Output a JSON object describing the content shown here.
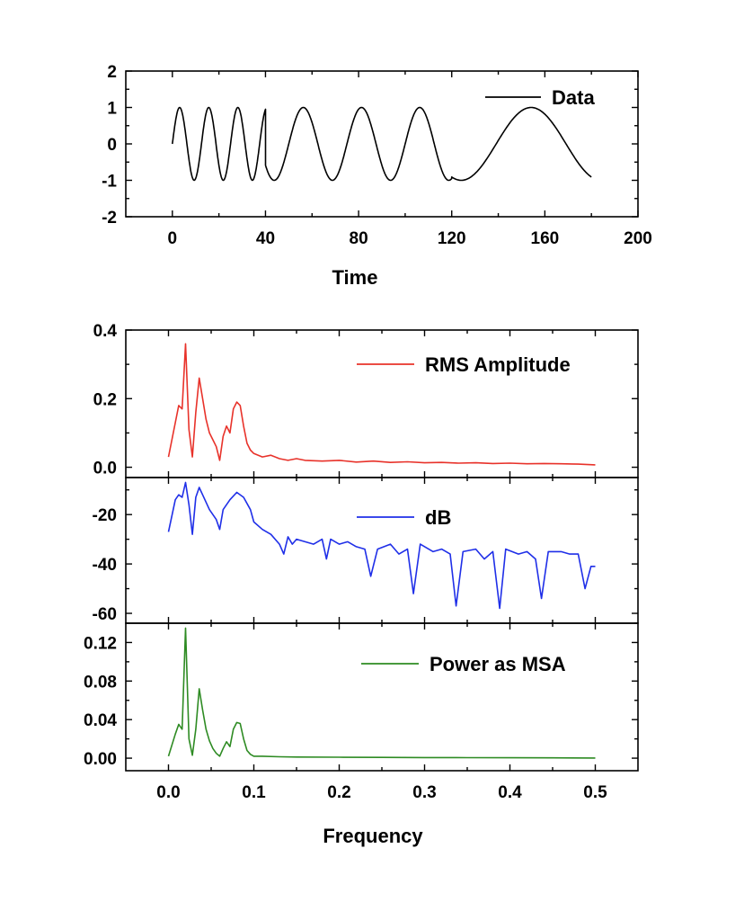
{
  "chart_data": [
    {
      "type": "line",
      "panel": "time",
      "xlabel": "Time",
      "ylabel": "",
      "xlim": [
        -20,
        200
      ],
      "ylim": [
        -2,
        2
      ],
      "xticks": [
        0,
        40,
        80,
        120,
        160,
        200
      ],
      "yticks": [
        -2,
        -1,
        0,
        1,
        2
      ],
      "xtick_labels": [
        "0",
        "40",
        "80",
        "120",
        "160",
        "200"
      ],
      "ytick_labels": [
        "-2",
        "-1",
        "0",
        "1",
        "2"
      ],
      "legend_position": "top-right",
      "series": [
        {
          "name": "Data",
          "color": "#000000",
          "segments": [
            {
              "t_start": 0,
              "t_end": 40,
              "period": 12.5
            },
            {
              "t_start": 40,
              "t_end": 80,
              "period": 25
            },
            {
              "t_start": 80,
              "t_end": 120,
              "period": 25
            },
            {
              "t_start": 120,
              "t_end": 180,
              "period": 60,
              "phase": -2.0
            }
          ]
        }
      ]
    },
    {
      "type": "line",
      "panel": "rms",
      "xlabel": "",
      "ylabel": "",
      "xlim": [
        -0.05,
        0.55
      ],
      "ylim": [
        -0.03,
        0.4
      ],
      "yticks": [
        0.0,
        0.2,
        0.4
      ],
      "ytick_labels": [
        "0.0",
        "0.2",
        "0.4"
      ],
      "legend_position": "top-right",
      "series": [
        {
          "name": "RMS Amplitude",
          "color": "#e8322a",
          "x": [
            0.0,
            0.008,
            0.012,
            0.016,
            0.02,
            0.024,
            0.028,
            0.032,
            0.036,
            0.04,
            0.044,
            0.048,
            0.052,
            0.056,
            0.06,
            0.064,
            0.068,
            0.072,
            0.076,
            0.08,
            0.084,
            0.088,
            0.092,
            0.096,
            0.1,
            0.11,
            0.12,
            0.13,
            0.14,
            0.15,
            0.16,
            0.18,
            0.2,
            0.22,
            0.24,
            0.26,
            0.28,
            0.3,
            0.32,
            0.34,
            0.36,
            0.38,
            0.4,
            0.42,
            0.44,
            0.46,
            0.48,
            0.5
          ],
          "y": [
            0.03,
            0.13,
            0.18,
            0.17,
            0.36,
            0.11,
            0.03,
            0.16,
            0.26,
            0.2,
            0.14,
            0.1,
            0.08,
            0.06,
            0.02,
            0.09,
            0.12,
            0.1,
            0.17,
            0.19,
            0.18,
            0.12,
            0.07,
            0.05,
            0.04,
            0.03,
            0.035,
            0.025,
            0.02,
            0.025,
            0.02,
            0.018,
            0.02,
            0.015,
            0.018,
            0.014,
            0.016,
            0.013,
            0.014,
            0.012,
            0.013,
            0.011,
            0.012,
            0.01,
            0.011,
            0.01,
            0.009,
            0.007
          ]
        }
      ]
    },
    {
      "type": "line",
      "panel": "db",
      "xlabel": "",
      "ylabel": "",
      "xlim": [
        -0.05,
        0.55
      ],
      "ylim": [
        -64,
        -5
      ],
      "yticks": [
        -20,
        -40,
        -60
      ],
      "ytick_labels": [
        "-20",
        "-40",
        "-60"
      ],
      "legend_position": "top-right",
      "series": [
        {
          "name": "dB",
          "color": "#1f2fe8",
          "x": [
            0.0,
            0.008,
            0.012,
            0.016,
            0.02,
            0.024,
            0.028,
            0.032,
            0.036,
            0.04,
            0.048,
            0.056,
            0.06,
            0.064,
            0.072,
            0.08,
            0.088,
            0.096,
            0.1,
            0.11,
            0.12,
            0.13,
            0.135,
            0.14,
            0.145,
            0.15,
            0.16,
            0.17,
            0.18,
            0.185,
            0.19,
            0.2,
            0.21,
            0.22,
            0.23,
            0.237,
            0.245,
            0.26,
            0.27,
            0.28,
            0.287,
            0.295,
            0.31,
            0.32,
            0.33,
            0.337,
            0.345,
            0.36,
            0.37,
            0.38,
            0.388,
            0.395,
            0.41,
            0.42,
            0.43,
            0.437,
            0.445,
            0.46,
            0.47,
            0.48,
            0.488,
            0.495,
            0.5
          ],
          "y": [
            -27,
            -14,
            -12,
            -13,
            -7,
            -16,
            -28,
            -13,
            -9,
            -12,
            -18,
            -22,
            -26,
            -18,
            -14,
            -11,
            -13,
            -18,
            -23,
            -26,
            -28,
            -32,
            -36,
            -29,
            -32,
            -30,
            -31,
            -32,
            -30,
            -38,
            -30,
            -32,
            -31,
            -33,
            -34,
            -45,
            -34,
            -32,
            -36,
            -34,
            -52,
            -32,
            -35,
            -34,
            -36,
            -57,
            -35,
            -34,
            -38,
            -35,
            -58,
            -34,
            -36,
            -35,
            -38,
            -54,
            -35,
            -35,
            -36,
            -36,
            -50,
            -41,
            -41
          ]
        }
      ]
    },
    {
      "type": "line",
      "panel": "power",
      "xlabel": "Frequency",
      "ylabel": "",
      "xlim": [
        -0.05,
        0.55
      ],
      "ylim": [
        -0.013,
        0.14
      ],
      "xticks": [
        0.0,
        0.1,
        0.2,
        0.3,
        0.4,
        0.5
      ],
      "yticks": [
        0.0,
        0.04,
        0.08,
        0.12
      ],
      "xtick_labels": [
        "0.0",
        "0.1",
        "0.2",
        "0.3",
        "0.4",
        "0.5"
      ],
      "ytick_labels": [
        "0.00",
        "0.04",
        "0.08",
        "0.12"
      ],
      "legend_position": "top-right",
      "series": [
        {
          "name": "Power as MSA",
          "color": "#2e8b23",
          "x": [
            0.0,
            0.008,
            0.012,
            0.016,
            0.02,
            0.024,
            0.028,
            0.032,
            0.036,
            0.04,
            0.044,
            0.048,
            0.052,
            0.056,
            0.06,
            0.064,
            0.068,
            0.072,
            0.076,
            0.08,
            0.084,
            0.088,
            0.092,
            0.096,
            0.1,
            0.11,
            0.13,
            0.15,
            0.2,
            0.25,
            0.3,
            0.35,
            0.4,
            0.45,
            0.5
          ],
          "y": [
            0.002,
            0.025,
            0.035,
            0.03,
            0.135,
            0.02,
            0.003,
            0.03,
            0.072,
            0.05,
            0.03,
            0.018,
            0.01,
            0.005,
            0.002,
            0.01,
            0.017,
            0.012,
            0.03,
            0.037,
            0.036,
            0.02,
            0.008,
            0.004,
            0.002,
            0.002,
            0.0015,
            0.0012,
            0.001,
            0.0008,
            0.0006,
            0.0005,
            0.0004,
            0.0003,
            0.0002
          ]
        }
      ]
    }
  ]
}
